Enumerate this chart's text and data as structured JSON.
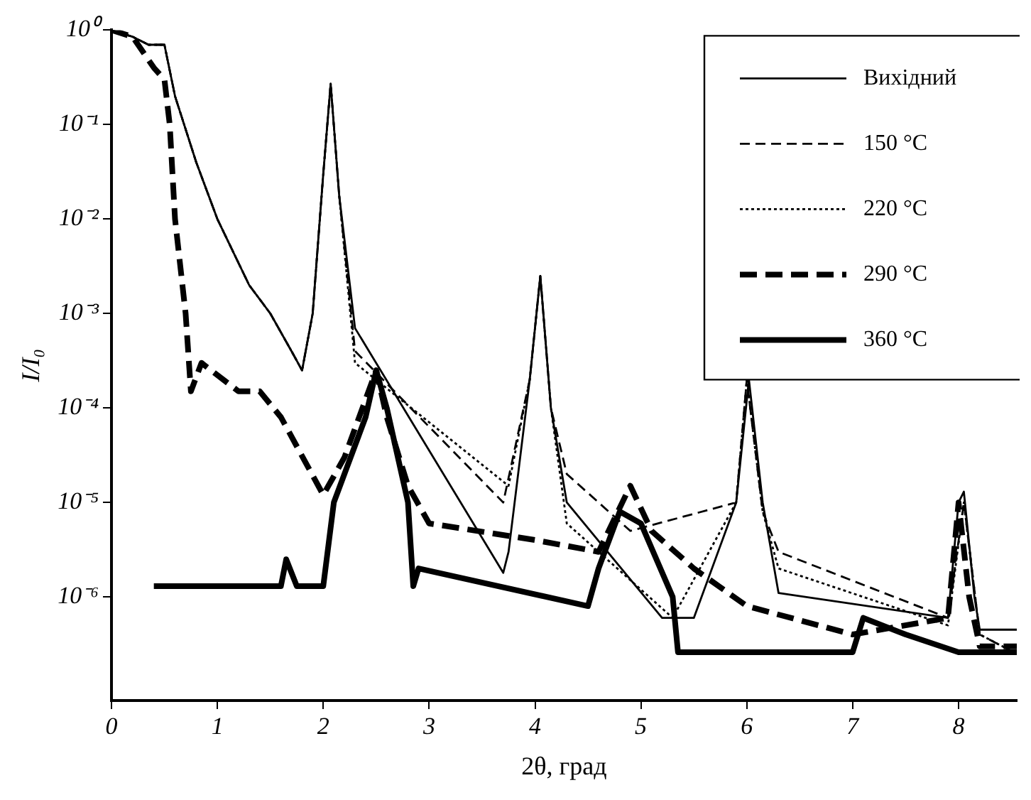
{
  "chart_data": {
    "type": "line",
    "xlabel": "2θ, град",
    "ylabel": "I/I₀",
    "log": "y",
    "xlim": [
      0,
      8.55
    ],
    "xticks": [
      0,
      1,
      2,
      3,
      4,
      5,
      6,
      7,
      8
    ],
    "ylim": [
      8e-08,
      1
    ],
    "yticks": [
      {
        "value": 1,
        "label": "10⁰"
      },
      {
        "value": 0.1,
        "label": "10⁻¹"
      },
      {
        "value": 0.01,
        "label": "10⁻²"
      },
      {
        "value": 0.001,
        "label": "10⁻³"
      },
      {
        "value": 0.0001,
        "label": "10⁻⁴"
      },
      {
        "value": 1e-05,
        "label": "10⁻⁵"
      },
      {
        "value": 1e-06,
        "label": "10⁻⁶"
      }
    ],
    "grid": false,
    "legend": "top right",
    "marker": "none",
    "series": [
      {
        "name": "Вихідний",
        "color": "#000000",
        "line_style": "solid",
        "x": [
          0,
          0.2,
          0.35,
          0.5,
          0.6,
          0.8,
          1.0,
          1.3,
          1.5,
          1.7,
          1.8,
          1.9,
          2.0,
          2.07,
          2.15,
          2.3,
          3.7,
          3.75,
          3.95,
          4.05,
          4.15,
          4.3,
          5.2,
          5.5,
          5.9,
          6.02,
          6.15,
          6.3,
          7.9,
          8.0,
          8.05,
          8.15,
          8.2,
          8.55
        ],
        "values": [
          1,
          0.85,
          0.7,
          0.7,
          0.2,
          0.04,
          0.01,
          0.002,
          0.001,
          0.0004,
          0.00025,
          0.001,
          0.03,
          0.27,
          0.018,
          0.0007,
          1.8e-06,
          3e-06,
          0.0002,
          0.0025,
          0.0001,
          1e-05,
          6e-07,
          6e-07,
          1e-05,
          0.0002,
          1e-05,
          1.1e-06,
          6e-07,
          1e-05,
          1.3e-05,
          1e-06,
          4.5e-07,
          4.5e-07
        ]
      },
      {
        "name": "150 °C",
        "color": "#000000",
        "line_style": "dashed",
        "x": [
          0,
          0.2,
          0.35,
          0.5,
          0.6,
          0.8,
          1.0,
          1.3,
          1.5,
          1.7,
          1.8,
          1.9,
          2.0,
          2.07,
          2.15,
          2.3,
          3.7,
          3.95,
          4.05,
          4.15,
          4.3,
          4.9,
          5.9,
          6.0,
          6.15,
          6.3,
          7.9,
          8.05,
          8.2,
          8.55
        ],
        "values": [
          1,
          0.85,
          0.7,
          0.7,
          0.2,
          0.04,
          0.01,
          0.002,
          0.001,
          0.0004,
          0.00025,
          0.001,
          0.03,
          0.27,
          0.018,
          0.0004,
          1e-05,
          0.0002,
          0.0025,
          0.0001,
          2e-05,
          5e-06,
          1e-05,
          0.0002,
          8e-06,
          3e-06,
          6e-07,
          1e-05,
          4e-07,
          2.5e-07
        ]
      },
      {
        "name": "220 °C",
        "color": "#000000",
        "line_style": "dotted",
        "x": [
          0,
          0.2,
          0.35,
          0.5,
          0.6,
          0.8,
          1.0,
          1.3,
          1.5,
          1.7,
          1.8,
          1.9,
          2.0,
          2.07,
          2.15,
          2.3,
          3.75,
          3.95,
          4.05,
          4.15,
          4.3,
          5.3,
          5.9,
          6.0,
          6.15,
          6.3,
          7.9,
          8.05,
          8.2,
          8.55
        ],
        "values": [
          1,
          0.85,
          0.7,
          0.7,
          0.2,
          0.04,
          0.01,
          0.002,
          0.001,
          0.0004,
          0.00025,
          0.001,
          0.03,
          0.27,
          0.018,
          0.0003,
          1.5e-05,
          0.0002,
          0.0025,
          0.0001,
          6e-06,
          6e-07,
          1e-05,
          0.0002,
          8e-06,
          2e-06,
          5e-07,
          1e-05,
          4e-07,
          2.5e-07
        ]
      },
      {
        "name": "290 °C",
        "color": "#000000",
        "line_style": "dashed",
        "x": [
          0,
          0.2,
          0.4,
          0.5,
          0.55,
          0.6,
          0.7,
          0.75,
          0.85,
          1.2,
          1.4,
          1.6,
          2.0,
          2.2,
          2.5,
          2.6,
          2.8,
          3.0,
          4.0,
          4.6,
          4.9,
          5.1,
          5.5,
          6.0,
          7.0,
          7.9,
          8.0,
          8.1,
          8.2,
          8.55
        ],
        "values": [
          1,
          0.85,
          0.4,
          0.3,
          0.1,
          0.01,
          0.001,
          0.00015,
          0.0003,
          0.00015,
          0.00015,
          8e-05,
          1.2e-05,
          3e-05,
          0.00025,
          8e-05,
          1.5e-05,
          6e-06,
          4e-06,
          3e-06,
          1.5e-05,
          5e-06,
          2e-06,
          8e-07,
          4e-07,
          6e-07,
          1e-05,
          1e-06,
          3e-07,
          3e-07
        ]
      },
      {
        "name": "360 °C",
        "color": "#000000",
        "line_style": "solid",
        "x": [
          0.4,
          1.6,
          1.65,
          1.75,
          2.0,
          2.1,
          2.2,
          2.4,
          2.5,
          2.6,
          2.8,
          2.85,
          2.9,
          4.5,
          4.6,
          4.8,
          5.0,
          5.3,
          5.35,
          7.0,
          7.1,
          7.5,
          8.0,
          8.55
        ],
        "values": [
          1.3e-06,
          1.3e-06,
          2.5e-06,
          1.3e-06,
          1.3e-06,
          1e-05,
          2e-05,
          8e-05,
          0.00025,
          0.0001,
          1e-05,
          1.3e-06,
          2e-06,
          8e-07,
          2e-06,
          8e-06,
          6e-06,
          1e-06,
          2.6e-07,
          2.6e-07,
          6e-07,
          4e-07,
          2.6e-07,
          2.6e-07
        ]
      }
    ]
  }
}
